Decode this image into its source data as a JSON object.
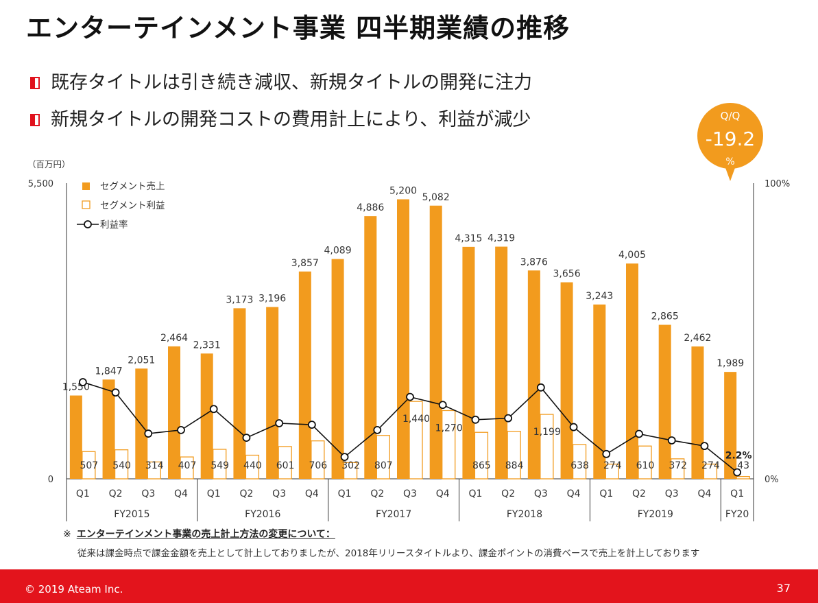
{
  "title": "エンターテインメント事業 四半期業績の推移",
  "bullets": [
    "既存タイトルは引き続き減収、新規タイトルの開発に注力",
    "新規タイトルの開発コストの費用計上により、利益が減少"
  ],
  "callout": {
    "label": "Q/Q",
    "value": "-19.2",
    "unit": "%"
  },
  "colors": {
    "accent": "#f29b1e",
    "brand_red": "#e3141c",
    "line": "#111111"
  },
  "chart_data": {
    "type": "bar",
    "unit_label": "（百万円）",
    "y_left_ticks": [
      "5,500",
      "0"
    ],
    "ylim": [
      0,
      5500
    ],
    "y_right_ticks": [
      "100%",
      "0%"
    ],
    "y2lim": [
      0,
      100
    ],
    "legend": [
      "セグメント売上",
      "セグメント利益",
      "利益率"
    ],
    "legend_position": "top-left",
    "quarters": [
      "Q1",
      "Q2",
      "Q3",
      "Q4",
      "Q1",
      "Q2",
      "Q3",
      "Q4",
      "Q1",
      "Q2",
      "Q3",
      "Q4",
      "Q1",
      "Q2",
      "Q3",
      "Q4",
      "Q1",
      "Q2",
      "Q3",
      "Q4",
      "Q1"
    ],
    "groups": [
      {
        "label": "FY2015",
        "count": 4
      },
      {
        "label": "FY2016",
        "count": 4
      },
      {
        "label": "FY2017",
        "count": 4
      },
      {
        "label": "FY2018",
        "count": 4
      },
      {
        "label": "FY2019",
        "count": 4
      },
      {
        "label": "FY20",
        "count": 1
      }
    ],
    "series": [
      {
        "name": "セグメント売上",
        "values": [
          1550,
          1847,
          2051,
          2464,
          2331,
          3173,
          3196,
          3857,
          4089,
          4886,
          5200,
          5082,
          4315,
          4319,
          3876,
          3656,
          3243,
          4005,
          2865,
          2462,
          1989
        ]
      },
      {
        "name": "セグメント利益",
        "values": [
          507,
          540,
          314,
          407,
          549,
          440,
          601,
          706,
          302,
          807,
          1440,
          1270,
          865,
          884,
          1199,
          638,
          274,
          610,
          372,
          274,
          43
        ]
      },
      {
        "name": "利益率",
        "values": [
          32.7,
          29.2,
          15.3,
          16.5,
          23.6,
          13.9,
          18.8,
          18.3,
          7.4,
          16.5,
          27.7,
          25.0,
          20.0,
          20.5,
          30.9,
          17.5,
          8.4,
          15.2,
          13.0,
          11.1,
          2.2
        ]
      }
    ],
    "last_margin_label": "2.2%"
  },
  "note": {
    "symbol": "※",
    "title": "エンターテインメント事業の売上計上方法の変更について：",
    "body": "従来は課金時点で課金金額を売上として計上しておりましたが、2018年リリースタイトルより、課金ポイントの消費ベースで売上を計上しております"
  },
  "footer": {
    "copyright": "© 2019 Ateam Inc.",
    "page": "37"
  }
}
